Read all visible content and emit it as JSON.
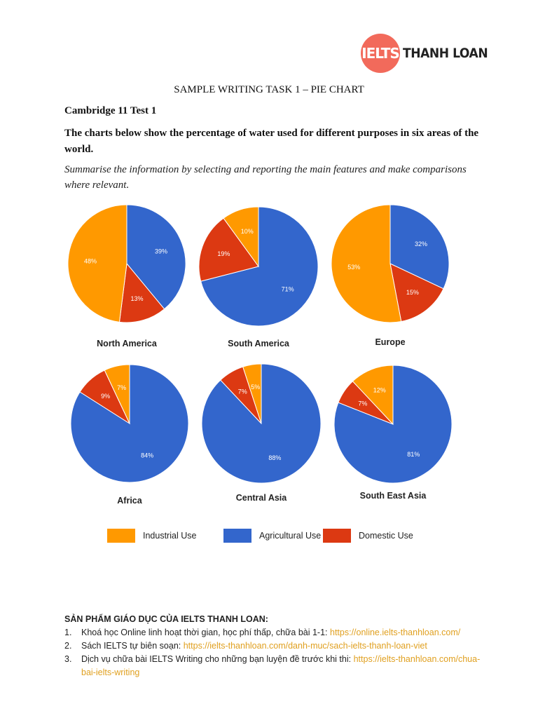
{
  "logo": {
    "circle_text": "IELTS",
    "text": "THANH LOAN",
    "color": "#F26A5B"
  },
  "title": "SAMPLE WRITING TASK 1 – PIE CHART",
  "subtitle": "Cambridge 11 Test 1",
  "task": "The charts below show the percentage of water used for different purposes in six areas of the world.",
  "instruction": "Summarise the information by selecting and reporting the main features and make comparisons where relevant.",
  "chart_data": {
    "type": "pie",
    "categories": [
      "Agricultural Use",
      "Domestic Use",
      "Industrial Use"
    ],
    "colors": {
      "Industrial Use": "#FF9900",
      "Agricultural Use": "#3366CC",
      "Domestic Use": "#DC3912"
    },
    "legend": [
      "Industrial Use",
      "Agricultural Use",
      "Domestic Use"
    ],
    "legend_position": "bottom",
    "charts": [
      {
        "title": "North America",
        "values": {
          "Agricultural Use": 39,
          "Domestic Use": 13,
          "Industrial Use": 48
        }
      },
      {
        "title": "South America",
        "values": {
          "Agricultural Use": 71,
          "Domestic Use": 19,
          "Industrial Use": 10
        }
      },
      {
        "title": "Europe",
        "values": {
          "Agricultural Use": 32,
          "Domestic Use": 15,
          "Industrial Use": 53
        }
      },
      {
        "title": "Africa",
        "values": {
          "Agricultural Use": 84,
          "Domestic Use": 9,
          "Industrial Use": 7
        }
      },
      {
        "title": "Central Asia",
        "values": {
          "Agricultural Use": 88,
          "Domestic Use": 7,
          "Industrial Use": 5
        }
      },
      {
        "title": "South East Asia",
        "values": {
          "Agricultural Use": 81,
          "Domestic Use": 7,
          "Industrial Use": 12
        }
      }
    ]
  },
  "footer": {
    "heading": "SẢN PHẨM GIÁO DỤC CỦA IELTS THANH LOAN:",
    "items": [
      {
        "num": "1.",
        "text": "Khoá học Online linh hoạt thời gian, học phí thấp, chữa bài 1-1: ",
        "link": "https://online.ielts-thanhloan.com/"
      },
      {
        "num": "2.",
        "text": "Sách IELTS tự biên soạn: ",
        "link": "https://ielts-thanhloan.com/danh-muc/sach-ielts-thanh-loan-viet"
      },
      {
        "num": "3.",
        "text": "Dịch vụ chữa bài IELTS Writing cho những bạn luyện đề trước khi thi: ",
        "link": "https://ielts-thanhloan.com/chua-bai-ielts-writing"
      }
    ]
  }
}
